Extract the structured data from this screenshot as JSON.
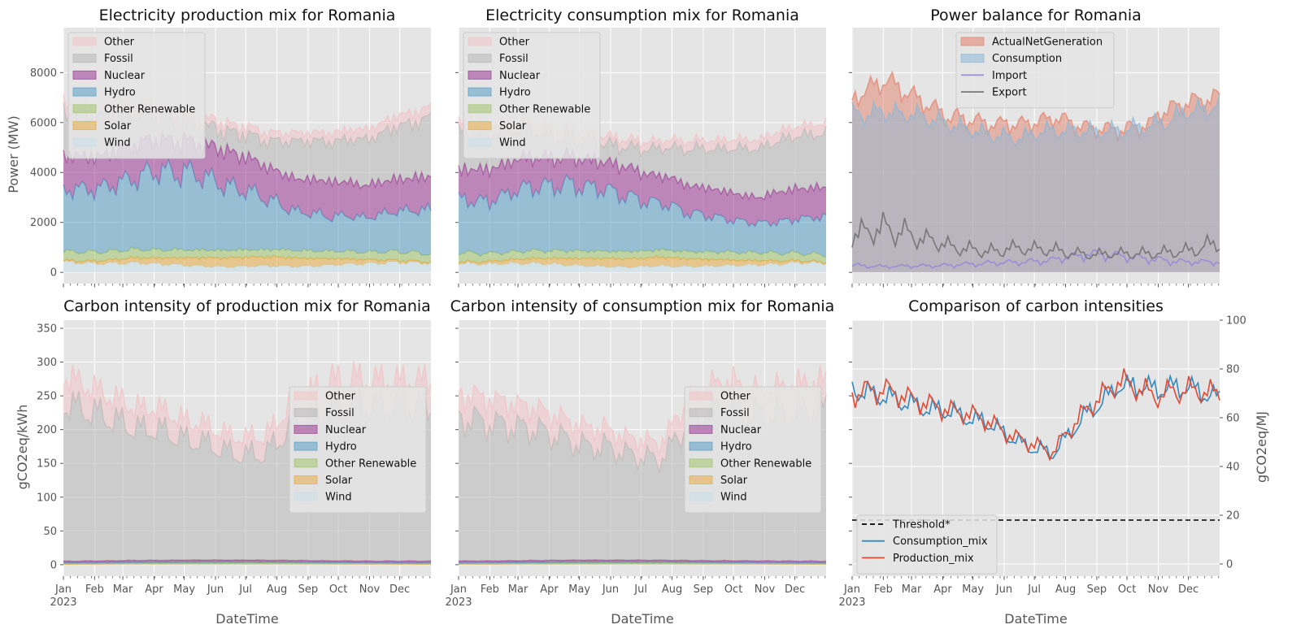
{
  "chart_data": [
    {
      "type": "area",
      "title": "Electricity production mix for Romania",
      "xlabel": "",
      "ylabel": "Power (MW)",
      "ylim": [
        -450,
        9800
      ],
      "yticks": [
        0,
        2000,
        4000,
        6000,
        8000
      ],
      "x_tick_labels": [],
      "grid": true,
      "legend_position": "upper-left",
      "x": [
        "Jan",
        "Feb",
        "Mar",
        "Apr",
        "May",
        "Jun",
        "Jul",
        "Aug",
        "Sep",
        "Oct",
        "Nov",
        "Dec"
      ],
      "series": [
        {
          "name": "Wind",
          "values": [
            400,
            350,
            380,
            330,
            250,
            220,
            260,
            230,
            280,
            330,
            400,
            380
          ]
        },
        {
          "name": "Solar",
          "values": [
            60,
            110,
            200,
            260,
            330,
            360,
            380,
            340,
            260,
            180,
            90,
            50
          ]
        },
        {
          "name": "Other Renewable",
          "values": [
            380,
            340,
            330,
            320,
            310,
            300,
            290,
            300,
            310,
            320,
            330,
            320
          ]
        },
        {
          "name": "Hydro",
          "values": [
            2400,
            2500,
            2900,
            3200,
            3000,
            2600,
            2100,
            1600,
            1400,
            1300,
            1600,
            1800
          ]
        },
        {
          "name": "Nuclear",
          "values": [
            1350,
            1350,
            1350,
            1250,
            1300,
            1350,
            1300,
            1300,
            1350,
            1300,
            1350,
            1350
          ]
        },
        {
          "name": "Fossil",
          "values": [
            1800,
            1600,
            1300,
            900,
            700,
            800,
            1000,
            1500,
            1600,
            1900,
            2100,
            2300
          ]
        },
        {
          "name": "Other",
          "values": [
            400,
            380,
            360,
            320,
            300,
            300,
            320,
            340,
            360,
            380,
            400,
            420
          ]
        }
      ]
    },
    {
      "type": "area",
      "title": "Electricity consumption mix for Romania",
      "xlabel": "",
      "ylabel": "",
      "ylim": [
        -450,
        9800
      ],
      "yticks": [
        0,
        2000,
        4000,
        6000,
        8000
      ],
      "x_tick_labels": [],
      "grid": true,
      "legend_position": "upper-left",
      "x": [
        "Jan",
        "Feb",
        "Mar",
        "Apr",
        "May",
        "Jun",
        "Jul",
        "Aug",
        "Sep",
        "Oct",
        "Nov",
        "Dec"
      ],
      "series": [
        {
          "name": "Wind",
          "values": [
            380,
            330,
            360,
            310,
            240,
            210,
            250,
            220,
            270,
            310,
            380,
            360
          ]
        },
        {
          "name": "Solar",
          "values": [
            60,
            110,
            190,
            250,
            320,
            340,
            360,
            320,
            250,
            170,
            90,
            50
          ]
        },
        {
          "name": "Other Renewable",
          "values": [
            360,
            320,
            320,
            300,
            300,
            290,
            280,
            290,
            300,
            310,
            310,
            300
          ]
        },
        {
          "name": "Hydro",
          "values": [
            2200,
            2200,
            2500,
            2700,
            2500,
            2200,
            1900,
            1500,
            1300,
            1200,
            1400,
            1500
          ]
        },
        {
          "name": "Nuclear",
          "values": [
            1200,
            1200,
            1200,
            1100,
            1100,
            1150,
            1100,
            1100,
            1150,
            1100,
            1150,
            1150
          ]
        },
        {
          "name": "Fossil",
          "values": [
            1500,
            1400,
            1100,
            800,
            700,
            800,
            1100,
            1500,
            1700,
            1900,
            2100,
            2200
          ]
        },
        {
          "name": "Other",
          "values": [
            360,
            340,
            320,
            300,
            280,
            280,
            300,
            320,
            340,
            360,
            380,
            400
          ]
        }
      ]
    },
    {
      "type": "line",
      "title": "Power balance for Romania",
      "xlabel": "",
      "ylabel": "",
      "ylim": [
        -450,
        9800
      ],
      "x_tick_labels": [],
      "grid": true,
      "legend_position": "upper-center",
      "x": [
        "Jan",
        "Feb",
        "Mar",
        "Apr",
        "May",
        "Jun",
        "Jul",
        "Aug",
        "Sep",
        "Oct",
        "Nov",
        "Dec"
      ],
      "series": [
        {
          "name": "ActualNetGeneration",
          "values": [
            6800,
            7600,
            6900,
            6200,
            6000,
            5900,
            6200,
            5800,
            5800,
            6100,
            6700,
            7000
          ]
        },
        {
          "name": "Consumption",
          "values": [
            6500,
            6400,
            6200,
            5900,
            5500,
            5400,
            5700,
            5600,
            5700,
            6000,
            6400,
            6600
          ]
        },
        {
          "name": "Import",
          "values": [
            300,
            250,
            250,
            300,
            350,
            400,
            500,
            700,
            650,
            550,
            450,
            400
          ]
        },
        {
          "name": "Export",
          "values": [
            1500,
            1900,
            1400,
            1000,
            900,
            900,
            900,
            700,
            700,
            750,
            900,
            1200
          ]
        }
      ]
    },
    {
      "type": "area",
      "title": "Carbon intensity of production mix for Romania",
      "xlabel": "DateTime",
      "ylabel": "gCO2eq/kWh",
      "ylim": [
        -17,
        362
      ],
      "yticks": [
        0,
        50,
        100,
        150,
        200,
        250,
        300,
        350
      ],
      "x_tick_labels": [
        "Jan\n2023",
        "Feb",
        "Mar",
        "Apr",
        "May",
        "Jun",
        "Jul",
        "Aug",
        "Sep",
        "Oct",
        "Nov",
        "Dec"
      ],
      "grid": true,
      "legend_position": "center-right",
      "x": [
        "Jan",
        "Feb",
        "Mar",
        "Apr",
        "May",
        "Jun",
        "Jul",
        "Aug",
        "Sep",
        "Oct",
        "Nov",
        "Dec"
      ],
      "series": [
        {
          "name": "Wind",
          "values": [
            0.5,
            0.5,
            0.5,
            0.5,
            0.4,
            0.4,
            0.4,
            0.4,
            0.4,
            0.5,
            0.5,
            0.5
          ]
        },
        {
          "name": "Solar",
          "values": [
            0.4,
            0.6,
            0.9,
            1.1,
            1.4,
            1.5,
            1.6,
            1.4,
            1.1,
            0.8,
            0.5,
            0.3
          ]
        },
        {
          "name": "Other Renewable",
          "values": [
            1,
            1,
            1,
            1,
            1,
            1,
            1,
            1,
            1,
            1,
            1,
            1
          ]
        },
        {
          "name": "Hydro",
          "values": [
            1,
            1,
            1.2,
            1.3,
            1.3,
            1.2,
            1,
            0.9,
            0.8,
            0.8,
            0.9,
            1
          ]
        },
        {
          "name": "Nuclear",
          "values": [
            2.5,
            2.5,
            2.6,
            2.7,
            2.8,
            2.8,
            2.7,
            2.6,
            2.6,
            2.5,
            2.5,
            2.5
          ]
        },
        {
          "name": "Fossil",
          "values": [
            225,
            215,
            200,
            190,
            175,
            160,
            155,
            210,
            230,
            220,
            225,
            230
          ]
        },
        {
          "name": "Other",
          "values": [
            40,
            35,
            32,
            30,
            28,
            25,
            25,
            35,
            40,
            38,
            40,
            40
          ]
        }
      ]
    },
    {
      "type": "area",
      "title": "Carbon intensity of consumption mix for Romania",
      "xlabel": "DateTime",
      "ylabel": "",
      "ylim": [
        -17,
        362
      ],
      "yticks": [
        0,
        50,
        100,
        150,
        200,
        250,
        300,
        350
      ],
      "x_tick_labels": [
        "Jan\n2023",
        "Feb",
        "Mar",
        "Apr",
        "May",
        "Jun",
        "Jul",
        "Aug",
        "Sep",
        "Oct",
        "Nov",
        "Dec"
      ],
      "grid": true,
      "legend_position": "center-right",
      "x": [
        "Jan",
        "Feb",
        "Mar",
        "Apr",
        "May",
        "Jun",
        "Jul",
        "Aug",
        "Sep",
        "Oct",
        "Nov",
        "Dec"
      ],
      "series": [
        {
          "name": "Wind",
          "values": [
            0.5,
            0.5,
            0.5,
            0.5,
            0.4,
            0.4,
            0.4,
            0.4,
            0.4,
            0.5,
            0.5,
            0.5
          ]
        },
        {
          "name": "Solar",
          "values": [
            0.4,
            0.6,
            0.9,
            1.1,
            1.4,
            1.5,
            1.6,
            1.4,
            1.1,
            0.8,
            0.5,
            0.3
          ]
        },
        {
          "name": "Other Renewable",
          "values": [
            1,
            1,
            1,
            1,
            1,
            1,
            1,
            1,
            1,
            1,
            1,
            1
          ]
        },
        {
          "name": "Hydro",
          "values": [
            1,
            1,
            1.2,
            1.3,
            1.3,
            1.2,
            1,
            0.9,
            0.8,
            0.8,
            0.9,
            1
          ]
        },
        {
          "name": "Nuclear",
          "values": [
            2.5,
            2.5,
            2.6,
            2.7,
            2.8,
            2.8,
            2.7,
            2.6,
            2.6,
            2.5,
            2.5,
            2.5
          ]
        },
        {
          "name": "Fossil",
          "values": [
            215,
            210,
            195,
            185,
            170,
            155,
            150,
            205,
            225,
            215,
            225,
            225
          ]
        },
        {
          "name": "Other",
          "values": [
            38,
            34,
            31,
            29,
            27,
            24,
            24,
            34,
            38,
            37,
            40,
            40
          ]
        }
      ]
    },
    {
      "type": "line",
      "title": "Comparison of carbon intensities",
      "xlabel": "DateTime",
      "ylabel": "gCO2eq/MJ",
      "y_axis_side": "right",
      "ylim": [
        -5,
        100
      ],
      "yticks": [
        0,
        20,
        40,
        60,
        80,
        100
      ],
      "x_tick_labels": [
        "Jan\n2023",
        "Feb",
        "Mar",
        "Apr",
        "May",
        "Jun",
        "Jul",
        "Aug",
        "Sep",
        "Oct",
        "Nov",
        "Dec"
      ],
      "grid": true,
      "legend_position": "lower-left",
      "x": [
        "Jan",
        "Feb",
        "Mar",
        "Apr",
        "May",
        "Jun",
        "Jul",
        "Aug",
        "Sep",
        "Oct",
        "Nov",
        "Dec"
      ],
      "series": [
        {
          "name": "Threshold*",
          "values": [
            18,
            18,
            18,
            18,
            18,
            18,
            18,
            18,
            18,
            18,
            18,
            18
          ]
        },
        {
          "name": "Consumption_mix",
          "values": [
            70,
            68,
            65,
            62,
            58,
            50,
            45,
            62,
            74,
            70,
            72,
            68
          ]
        },
        {
          "name": "Production_mix",
          "values": [
            72,
            70,
            66,
            63,
            59,
            51,
            46,
            63,
            76,
            71,
            70,
            69
          ]
        }
      ]
    }
  ],
  "colors": {
    "Other": "#f2c4c8",
    "Fossil": "#b8b8b8",
    "Nuclear": "#9b3a94",
    "Hydro": "#5a9ec7",
    "Other Renewable": "#a3c46e",
    "Solar": "#e8ad44",
    "Wind": "#c8e0ea",
    "ActualNetGeneration": "#e3826b",
    "Consumption": "#8db8d6",
    "Import": "#988ed5",
    "Export": "#777777",
    "Threshold*": "#000000",
    "Consumption_mix": "#348abd",
    "Production_mix": "#e24a33"
  }
}
